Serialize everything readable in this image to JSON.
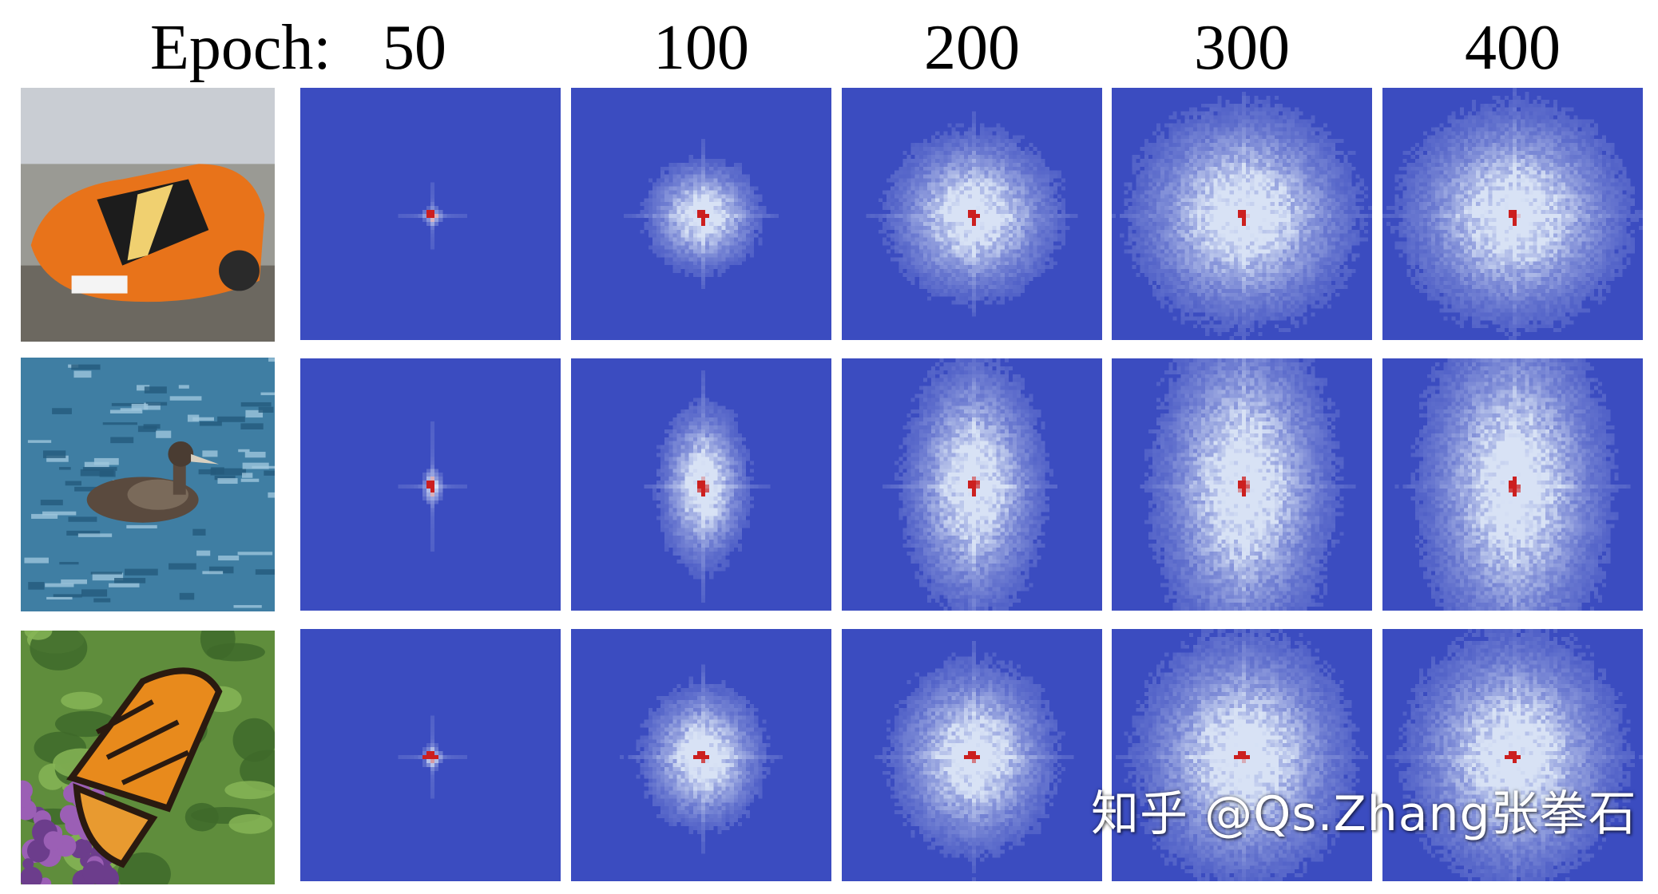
{
  "figure": {
    "epoch_prefix": "Epoch:",
    "epochs": [
      "50",
      "100",
      "200",
      "300",
      "400"
    ],
    "rows": [
      {
        "id": "car",
        "photo_icon": "racing-car-photo",
        "spread": [
          0.05,
          0.28,
          0.42,
          0.55,
          0.55
        ],
        "vertical_bias": 1.0
      },
      {
        "id": "bird",
        "photo_icon": "seabird-on-water-photo",
        "spread": [
          0.05,
          0.22,
          0.34,
          0.44,
          0.46
        ],
        "vertical_bias": 1.9
      },
      {
        "id": "butterfly",
        "photo_icon": "monarch-butterfly-photo",
        "spread": [
          0.05,
          0.3,
          0.4,
          0.52,
          0.52
        ],
        "vertical_bias": 1.2
      }
    ],
    "colormap": {
      "low": "#3b4cc0",
      "mid": "#dde7f7",
      "high": "#cc1f1f"
    }
  },
  "watermark": {
    "text": "知乎 @Qs.Zhang张拳石"
  }
}
